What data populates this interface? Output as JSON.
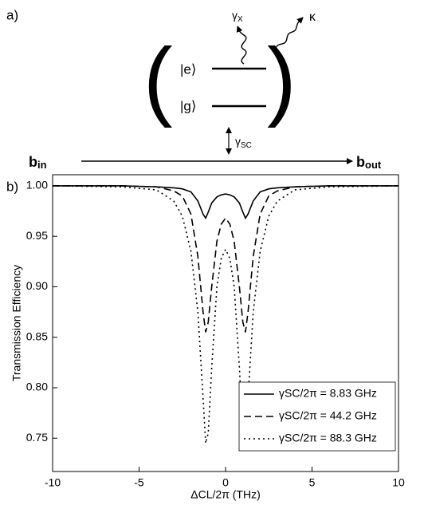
{
  "diagram": {
    "panel_label": "a)",
    "gamma_x": {
      "symbol": "γ",
      "sub": "X"
    },
    "kappa": "κ",
    "excited": "|e⟩",
    "ground": "|g⟩",
    "gamma_sc": {
      "symbol": "γ",
      "sub": "SC"
    },
    "b_in": {
      "symbol": "b",
      "sub": "in"
    },
    "b_out": {
      "symbol": "b",
      "sub": "out"
    }
  },
  "chart_data": {
    "type": "line",
    "panel_label": "b)",
    "xlabel": "ΔCL/2π (THz)",
    "ylabel": "Transmission Efficiency",
    "x": [
      -10,
      -6,
      -4,
      -3,
      -2.5,
      -2,
      -1.6,
      -1.3,
      -1.15,
      -1,
      -0.8,
      -0.5,
      -0.25,
      0,
      0.25,
      0.5,
      0.8,
      1,
      1.15,
      1.3,
      1.6,
      2,
      2.5,
      3,
      4,
      6,
      10
    ],
    "series": [
      {
        "name": "γSC/2π = 8.83 GHz",
        "color": "#000000",
        "style": "solid",
        "values": [
          1.0,
          1.0,
          0.999,
          0.998,
          0.997,
          0.994,
          0.985,
          0.972,
          0.968,
          0.974,
          0.983,
          0.989,
          0.991,
          0.992,
          0.991,
          0.989,
          0.983,
          0.974,
          0.968,
          0.972,
          0.985,
          0.994,
          0.997,
          0.998,
          0.999,
          1.0,
          1.0
        ]
      },
      {
        "name": "γSC/2π = 44.2 GHz",
        "color": "#000000",
        "style": "dashed",
        "values": [
          1.0,
          1.0,
          0.999,
          0.995,
          0.99,
          0.972,
          0.93,
          0.875,
          0.855,
          0.865,
          0.9,
          0.945,
          0.962,
          0.968,
          0.962,
          0.945,
          0.9,
          0.865,
          0.855,
          0.875,
          0.93,
          0.972,
          0.99,
          0.995,
          0.999,
          1.0,
          1.0
        ]
      },
      {
        "name": "γSC/2π = 88.3 GHz",
        "color": "#000000",
        "style": "dotted",
        "values": [
          1.0,
          0.999,
          0.996,
          0.985,
          0.97,
          0.935,
          0.875,
          0.79,
          0.745,
          0.755,
          0.82,
          0.9,
          0.928,
          0.937,
          0.928,
          0.9,
          0.82,
          0.755,
          0.745,
          0.79,
          0.875,
          0.935,
          0.97,
          0.985,
          0.996,
          0.999,
          1.0
        ]
      }
    ],
    "xlim": [
      -10,
      10
    ],
    "xticks": [
      -10,
      -5,
      0,
      5,
      10
    ],
    "ylim": [
      0.717,
      1.011
    ],
    "yticks": [
      0.75,
      {
        "value": 0.8,
        "label": "0.80"
      },
      0.85,
      {
        "value": 0.9,
        "label": "0.90"
      },
      0.95,
      {
        "value": 1.0,
        "label": "1.00"
      }
    ],
    "grid": false,
    "legend": "lower right"
  }
}
